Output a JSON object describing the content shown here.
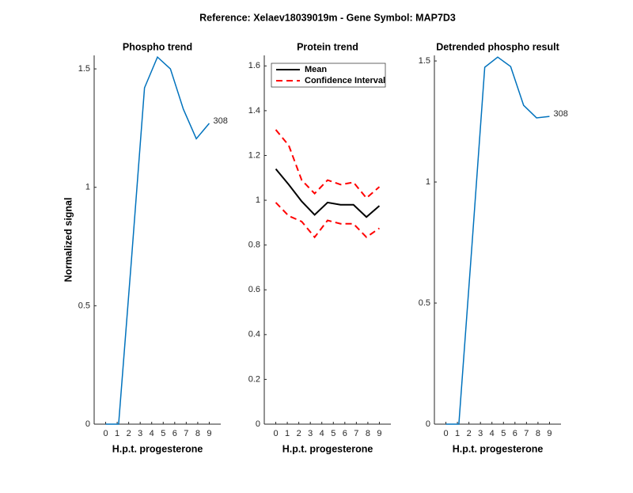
{
  "title": "Reference:  Xelaev18039019m - Gene Symbol:  MAP7D3",
  "chart_data": [
    {
      "type": "line",
      "title": "Phospho trend",
      "xlabel": "H.p.t. progesterone",
      "ylabel": "Normalized signal",
      "x": [
        0,
        1.125,
        2.25,
        3.375,
        4.5,
        5.625,
        6.75,
        7.875,
        9
      ],
      "series": [
        {
          "color": "#0072bd",
          "values": [
            0,
            0,
            0.7,
            1.42,
            1.55,
            1.5,
            1.33,
            1.205,
            1.27
          ]
        }
      ],
      "annotation": "308",
      "xlim": [
        -1,
        10
      ],
      "xticks": [
        0,
        1,
        2,
        3,
        4,
        5,
        6,
        7,
        8,
        9
      ],
      "ylim": [
        0,
        1.557
      ],
      "yticks": [
        0,
        0.5,
        1,
        1.5
      ]
    },
    {
      "type": "line",
      "title": "Protein trend",
      "xlabel": "H.p.t. progesterone",
      "x": [
        0,
        1.125,
        2.25,
        3.375,
        4.5,
        5.625,
        6.75,
        7.875,
        9
      ],
      "series": [
        {
          "name": "Mean",
          "color": "#000000",
          "style": "solid",
          "values": [
            1.14,
            1.07,
            0.995,
            0.935,
            0.99,
            0.98,
            0.98,
            0.925,
            0.975
          ]
        },
        {
          "name": "Confidence Interval",
          "color": "#ff0000",
          "style": "dashed",
          "values": [
            1.315,
            1.245,
            1.09,
            1.03,
            1.09,
            1.07,
            1.08,
            1.01,
            1.06
          ],
          "lower": [
            0.99,
            0.93,
            0.905,
            0.835,
            0.91,
            0.895,
            0.895,
            0.835,
            0.875
          ]
        }
      ],
      "legend": "upper left",
      "xlim": [
        -1,
        10
      ],
      "xticks": [
        0,
        1,
        2,
        3,
        4,
        5,
        6,
        7,
        8,
        9
      ],
      "ylim": [
        0,
        1.647
      ],
      "yticks": [
        0,
        0.2,
        0.4,
        0.6,
        0.8,
        1,
        1.2,
        1.4,
        1.6
      ]
    },
    {
      "type": "line",
      "title": "Detrended phospho result",
      "xlabel": "H.p.t. progesterone",
      "x": [
        0,
        1.125,
        2.25,
        3.375,
        4.5,
        5.625,
        6.75,
        7.875,
        9
      ],
      "series": [
        {
          "color": "#0072bd",
          "values": [
            0,
            0,
            0.73,
            1.474,
            1.516,
            1.477,
            1.317,
            1.265,
            1.271
          ]
        }
      ],
      "annotation": "308",
      "xlim": [
        -1,
        10
      ],
      "xticks": [
        0,
        1,
        2,
        3,
        4,
        5,
        6,
        7,
        8,
        9
      ],
      "ylim": [
        0,
        1.523
      ],
      "yticks": [
        0,
        0.5,
        1,
        1.5
      ]
    }
  ]
}
